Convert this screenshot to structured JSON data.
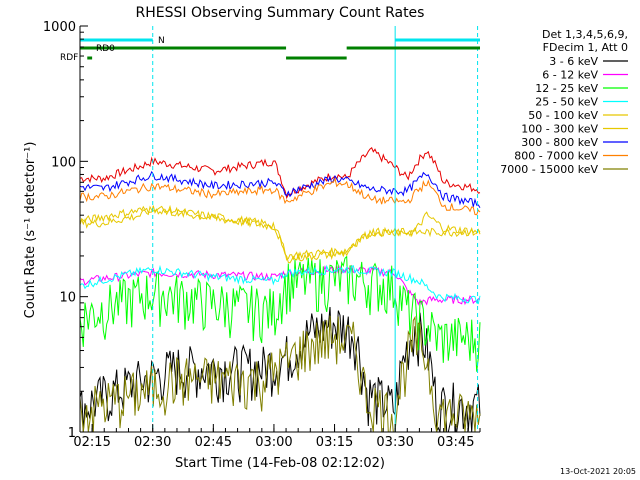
{
  "chart_data": {
    "type": "line",
    "title": "RHESSI Observing Summary Count Rates",
    "xlabel": "Start Time (14-Feb-08 02:12:02)",
    "ylabel": "Count Rate (s⁻¹ detector⁻¹)",
    "y_scale": "log",
    "ylim": [
      1,
      1000
    ],
    "xlim": [
      2.2,
      3.85
    ],
    "x_ticks": [
      {
        "v": 2.25,
        "label": "02:15"
      },
      {
        "v": 2.5,
        "label": "02:30"
      },
      {
        "v": 2.75,
        "label": "02:45"
      },
      {
        "v": 3.0,
        "label": "03:00"
      },
      {
        "v": 3.25,
        "label": "03:15"
      },
      {
        "v": 3.5,
        "label": "03:30"
      },
      {
        "v": 3.75,
        "label": "03:45"
      }
    ],
    "y_ticks": [
      {
        "v": 1,
        "label": "1"
      },
      {
        "v": 10,
        "label": "10"
      },
      {
        "v": 100,
        "label": "100"
      },
      {
        "v": 1000,
        "label": "1000"
      }
    ],
    "legend_header": [
      "Det 1,3,4,5,6,9,",
      "FDecim 1, Att 0"
    ],
    "legend_position": "right",
    "series": [
      {
        "name": "3 - 6 keV",
        "color": "#000000",
        "points": [
          [
            2.2,
            1.5
          ],
          [
            2.48,
            2.5
          ],
          [
            2.6,
            3
          ],
          [
            2.95,
            3
          ],
          [
            3.05,
            3.6
          ],
          [
            3.15,
            5.5
          ],
          [
            3.25,
            6.5
          ],
          [
            3.33,
            5.5
          ],
          [
            3.38,
            2
          ],
          [
            3.5,
            1.5
          ],
          [
            3.58,
            6
          ],
          [
            3.62,
            4.8
          ],
          [
            3.67,
            1.6
          ],
          [
            3.85,
            1.6
          ]
        ]
      },
      {
        "name": "6 - 12 keV",
        "color": "#ff00ff",
        "points": [
          [
            2.2,
            13
          ],
          [
            2.35,
            14
          ],
          [
            2.5,
            15
          ],
          [
            3.0,
            14
          ],
          [
            3.05,
            15
          ],
          [
            3.3,
            16
          ],
          [
            3.5,
            15
          ],
          [
            3.55,
            11
          ],
          [
            3.6,
            9
          ],
          [
            3.65,
            9.5
          ],
          [
            3.85,
            9.5
          ]
        ]
      },
      {
        "name": "12 - 25 keV",
        "color": "#00ff00",
        "points": [
          [
            2.2,
            7
          ],
          [
            2.35,
            9
          ],
          [
            2.5,
            11
          ],
          [
            2.75,
            9
          ],
          [
            3.0,
            8
          ],
          [
            3.05,
            13
          ],
          [
            3.3,
            14
          ],
          [
            3.5,
            12
          ],
          [
            3.55,
            8
          ],
          [
            3.6,
            7
          ],
          [
            3.68,
            5
          ],
          [
            3.85,
            5
          ]
        ]
      },
      {
        "name": "25 - 50 keV",
        "color": "#00ffff",
        "points": [
          [
            2.2,
            12
          ],
          [
            2.35,
            14
          ],
          [
            2.5,
            16
          ],
          [
            2.75,
            14
          ],
          [
            3.0,
            13
          ],
          [
            3.05,
            15
          ],
          [
            3.3,
            16
          ],
          [
            3.5,
            15
          ],
          [
            3.55,
            14
          ],
          [
            3.6,
            13
          ],
          [
            3.68,
            10
          ],
          [
            3.85,
            9.5
          ]
        ]
      },
      {
        "name": "50 - 100 keV",
        "color": "#e6c800",
        "points": [
          [
            2.2,
            35
          ],
          [
            2.3,
            35
          ],
          [
            2.45,
            40
          ],
          [
            2.5,
            44
          ],
          [
            2.75,
            38
          ],
          [
            3.0,
            33
          ],
          [
            3.05,
            20
          ],
          [
            3.3,
            22
          ],
          [
            3.4,
            30
          ],
          [
            3.58,
            30
          ],
          [
            3.63,
            40
          ],
          [
            3.7,
            32
          ],
          [
            3.85,
            30
          ]
        ]
      },
      {
        "name": "100 - 300 keV",
        "color": "#e6c800",
        "points": [
          [
            2.2,
            36
          ],
          [
            2.5,
            45
          ],
          [
            2.75,
            39
          ],
          [
            3.0,
            34
          ],
          [
            3.05,
            19
          ],
          [
            3.3,
            21
          ],
          [
            3.4,
            30
          ],
          [
            3.85,
            30
          ]
        ]
      },
      {
        "name": "300 - 800 keV",
        "color": "#0000ff",
        "points": [
          [
            2.2,
            65
          ],
          [
            2.3,
            63
          ],
          [
            2.45,
            75
          ],
          [
            2.5,
            79
          ],
          [
            2.75,
            66
          ],
          [
            3.0,
            70
          ],
          [
            3.05,
            58
          ],
          [
            3.25,
            75
          ],
          [
            3.3,
            72
          ],
          [
            3.4,
            62
          ],
          [
            3.55,
            60
          ],
          [
            3.63,
            82
          ],
          [
            3.7,
            55
          ],
          [
            3.85,
            48
          ]
        ]
      },
      {
        "name": "800 - 7000 keV",
        "color": "#ff8000",
        "points": [
          [
            2.2,
            55
          ],
          [
            2.3,
            55
          ],
          [
            2.45,
            63
          ],
          [
            2.5,
            66
          ],
          [
            2.75,
            57
          ],
          [
            3.0,
            62
          ],
          [
            3.05,
            50
          ],
          [
            3.25,
            70
          ],
          [
            3.3,
            68
          ],
          [
            3.4,
            52
          ],
          [
            3.55,
            50
          ],
          [
            3.63,
            70
          ],
          [
            3.7,
            47
          ],
          [
            3.85,
            42
          ]
        ]
      },
      {
        "name": "7000 - 15000 keV",
        "color": "#808000",
        "points": [
          [
            2.2,
            1.4
          ],
          [
            2.45,
            2
          ],
          [
            2.6,
            2.5
          ],
          [
            2.95,
            2.5
          ],
          [
            3.05,
            3.3
          ],
          [
            3.15,
            4.5
          ],
          [
            3.25,
            5.2
          ],
          [
            3.33,
            4.5
          ],
          [
            3.38,
            1.8
          ],
          [
            3.5,
            1.3
          ],
          [
            3.58,
            5
          ],
          [
            3.62,
            4
          ],
          [
            3.67,
            1.4
          ],
          [
            3.85,
            1.3
          ]
        ]
      }
    ],
    "extra_series": [
      {
        "name": "",
        "color": "#e60000",
        "points": [
          [
            2.2,
            75
          ],
          [
            2.3,
            75
          ],
          [
            2.45,
            92
          ],
          [
            2.5,
            100
          ],
          [
            2.75,
            85
          ],
          [
            3.0,
            100
          ],
          [
            3.05,
            57
          ],
          [
            3.25,
            80
          ],
          [
            3.3,
            75
          ],
          [
            3.4,
            120
          ],
          [
            3.55,
            75
          ],
          [
            3.63,
            120
          ],
          [
            3.7,
            70
          ],
          [
            3.85,
            62
          ]
        ]
      }
    ],
    "flags": [
      {
        "label": "N",
        "color": "#00e5ee",
        "segments": [
          [
            2.2,
            2.5
          ],
          [
            3.5,
            3.85
          ]
        ]
      },
      {
        "label": "RD0",
        "color": "#008000",
        "segments": [
          [
            2.2,
            3.05
          ],
          [
            3.3,
            3.85
          ]
        ]
      },
      {
        "label": "RDF",
        "color": "#008000",
        "segments": [
          [
            2.23,
            2.25
          ],
          [
            3.05,
            3.3
          ]
        ]
      }
    ],
    "vlines": [
      {
        "x": 2.2,
        "color": "#00e5ee",
        "style": "solid"
      },
      {
        "x": 2.5,
        "color": "#00e5ee",
        "style": "dashed"
      },
      {
        "x": 3.5,
        "color": "#00e5ee",
        "style": "solid"
      },
      {
        "x": 3.84,
        "color": "#00e5ee",
        "style": "dashed"
      }
    ],
    "footer": "13-Oct-2021 20:05"
  }
}
